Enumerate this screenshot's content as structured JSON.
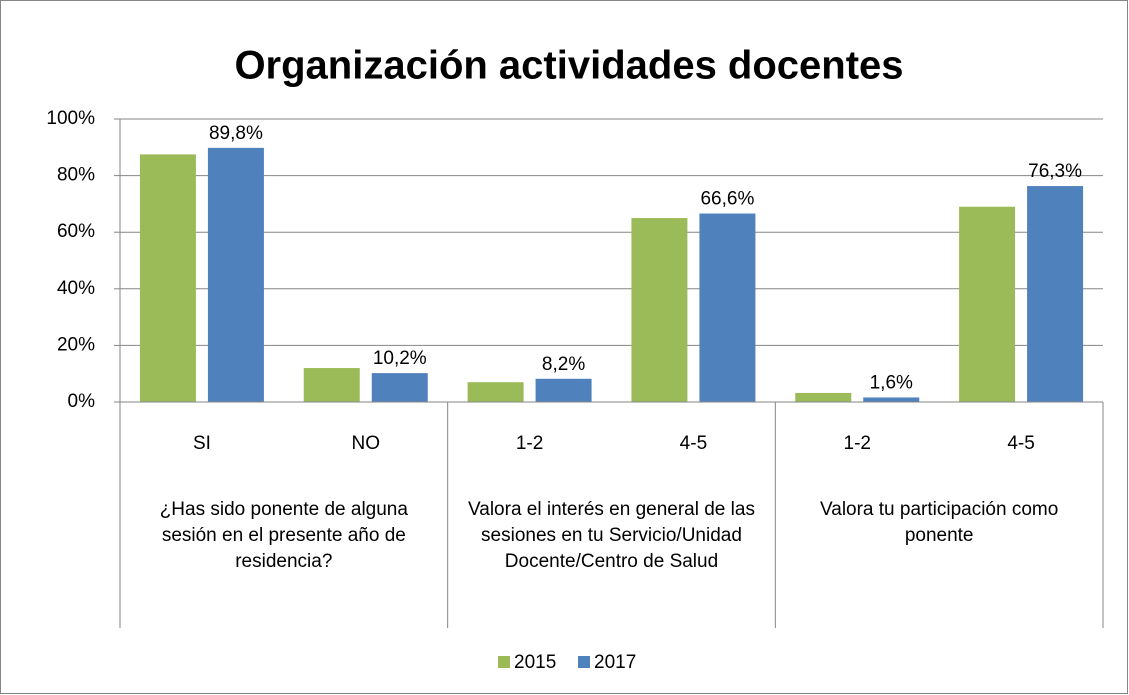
{
  "chart_data": {
    "type": "bar",
    "title": "Organización actividades docentes",
    "categories": [
      "SI",
      "NO",
      "1-2",
      "4-5",
      "1-2",
      "4-5"
    ],
    "groups": [
      "¿Has sido ponente de alguna sesión en el presente año de residencia?",
      "Valora el interés en general de las sesiones en tu Servicio/Unidad Docente/Centro de Salud",
      "Valora tu participación como ponente"
    ],
    "series": [
      {
        "name": "2015",
        "color": "#9bbb59",
        "values": [
          87.5,
          12,
          7,
          65,
          3.2,
          69
        ]
      },
      {
        "name": "2017",
        "color": "#4f81bd",
        "values": [
          89.8,
          10.2,
          8.2,
          66.6,
          1.6,
          76.3
        ],
        "value_labels": [
          "89,8%",
          "10,2%",
          "8,2%",
          "66,6%",
          "1,6%",
          "76,3%"
        ]
      }
    ],
    "ylim": [
      0,
      100
    ],
    "yticks": [
      {
        "value": 0,
        "label": "0%"
      },
      {
        "value": 20,
        "label": "20%"
      },
      {
        "value": 40,
        "label": "40%"
      },
      {
        "value": 60,
        "label": "60%"
      },
      {
        "value": 80,
        "label": "80%"
      },
      {
        "value": 100,
        "label": "100%"
      }
    ],
    "grid": true,
    "legend": "bottom"
  }
}
